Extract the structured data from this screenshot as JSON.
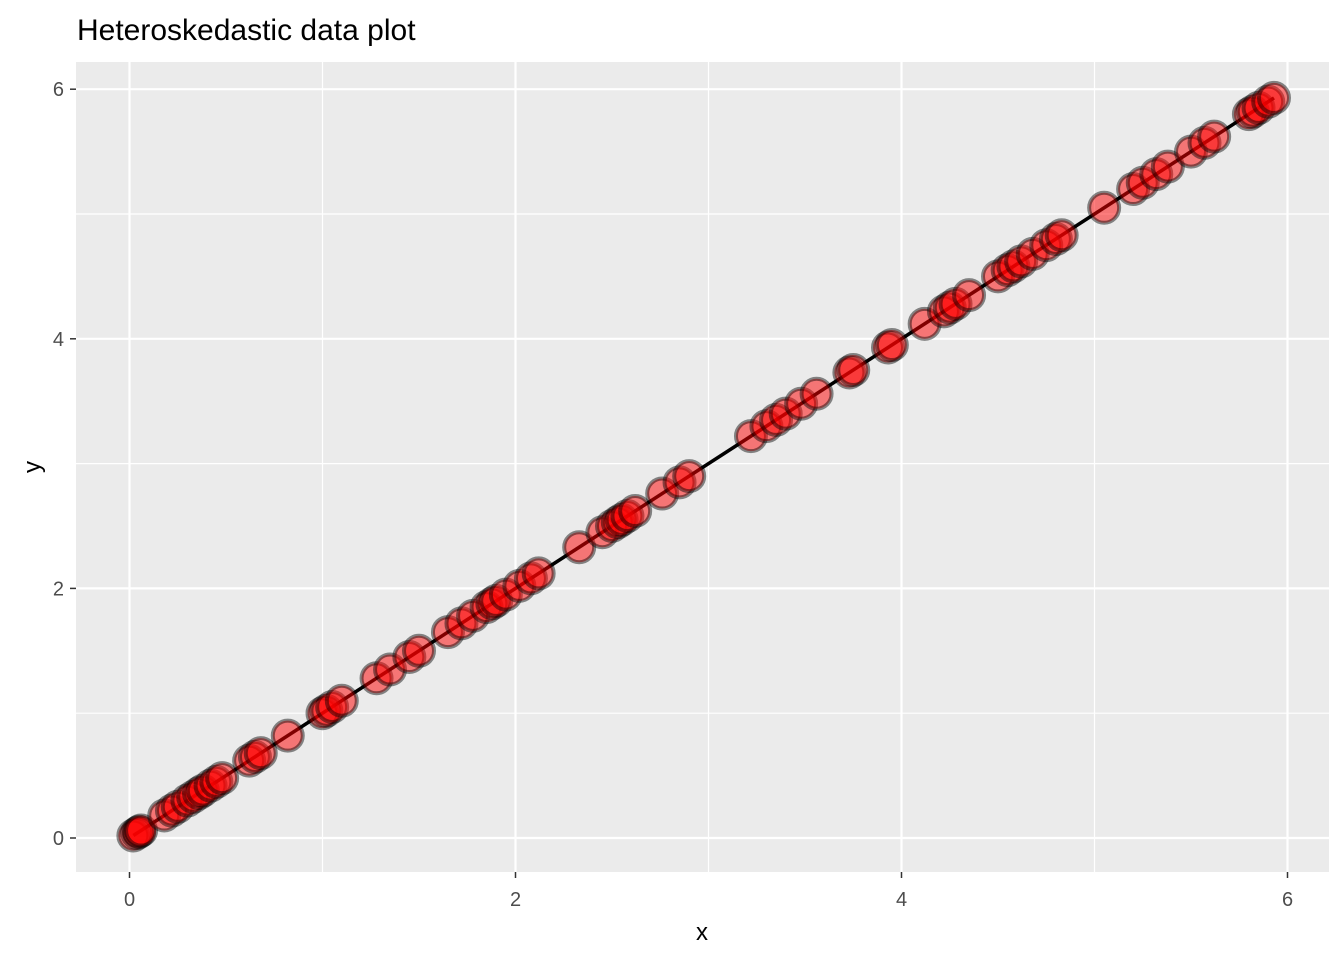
{
  "chart_data": {
    "type": "scatter",
    "title": "Heteroskedastic data plot",
    "xlabel": "x",
    "ylabel": "y",
    "xlim": [
      -0.28,
      6.22
    ],
    "ylim": [
      -0.28,
      6.22
    ],
    "xticks": [
      0,
      2,
      4,
      6
    ],
    "yticks": [
      0,
      2,
      4,
      6
    ],
    "xtick_labels": [
      "0",
      "2",
      "4",
      "6"
    ],
    "ytick_labels": [
      "0",
      "2",
      "4",
      "6"
    ],
    "grid": true,
    "legend": "none",
    "colors": {
      "panel_background": "#ebebeb",
      "gridline": "#ffffff",
      "point_fill": "#ff0000",
      "point_outline": "#000000",
      "line": "#000000"
    },
    "fit_line": {
      "x": [
        0.02,
        5.93
      ],
      "y": [
        0.02,
        5.93
      ]
    },
    "series": [
      {
        "x": [
          0.02,
          0.04,
          0.05,
          0.06,
          0.18,
          0.22,
          0.25,
          0.3,
          0.33,
          0.36,
          0.38,
          0.42,
          0.45,
          0.48,
          0.62,
          0.65,
          0.68,
          0.82,
          1.0,
          1.02,
          1.05,
          1.1,
          1.28,
          1.35,
          1.45,
          1.5,
          1.65,
          1.72,
          1.78,
          1.85,
          1.88,
          1.9,
          1.95,
          2.02,
          2.08,
          2.12,
          2.33,
          2.45,
          2.5,
          2.53,
          2.55,
          2.58,
          2.62,
          2.76,
          2.85,
          2.9,
          3.22,
          3.3,
          3.35,
          3.4,
          3.48,
          3.56,
          3.73,
          3.75,
          3.93,
          3.95,
          4.12,
          4.22,
          4.25,
          4.28,
          4.35,
          4.5,
          4.55,
          4.58,
          4.62,
          4.68,
          4.75,
          4.8,
          4.83,
          5.05,
          5.2,
          5.25,
          5.32,
          5.38,
          5.5,
          5.57,
          5.62,
          5.8,
          5.82,
          5.85,
          5.9,
          5.93
        ],
        "y": [
          0.02,
          0.04,
          0.05,
          0.06,
          0.18,
          0.22,
          0.25,
          0.3,
          0.33,
          0.36,
          0.38,
          0.42,
          0.45,
          0.48,
          0.62,
          0.65,
          0.68,
          0.82,
          1.0,
          1.02,
          1.05,
          1.1,
          1.28,
          1.35,
          1.45,
          1.5,
          1.65,
          1.72,
          1.78,
          1.85,
          1.88,
          1.9,
          1.95,
          2.02,
          2.08,
          2.12,
          2.33,
          2.45,
          2.5,
          2.53,
          2.55,
          2.58,
          2.62,
          2.76,
          2.85,
          2.9,
          3.22,
          3.3,
          3.35,
          3.4,
          3.48,
          3.56,
          3.73,
          3.75,
          3.93,
          3.95,
          4.12,
          4.22,
          4.25,
          4.28,
          4.35,
          4.5,
          4.55,
          4.58,
          4.62,
          4.68,
          4.75,
          4.8,
          4.83,
          5.05,
          5.2,
          5.25,
          5.32,
          5.38,
          5.5,
          5.57,
          5.62,
          5.8,
          5.82,
          5.85,
          5.9,
          5.93
        ]
      }
    ]
  }
}
